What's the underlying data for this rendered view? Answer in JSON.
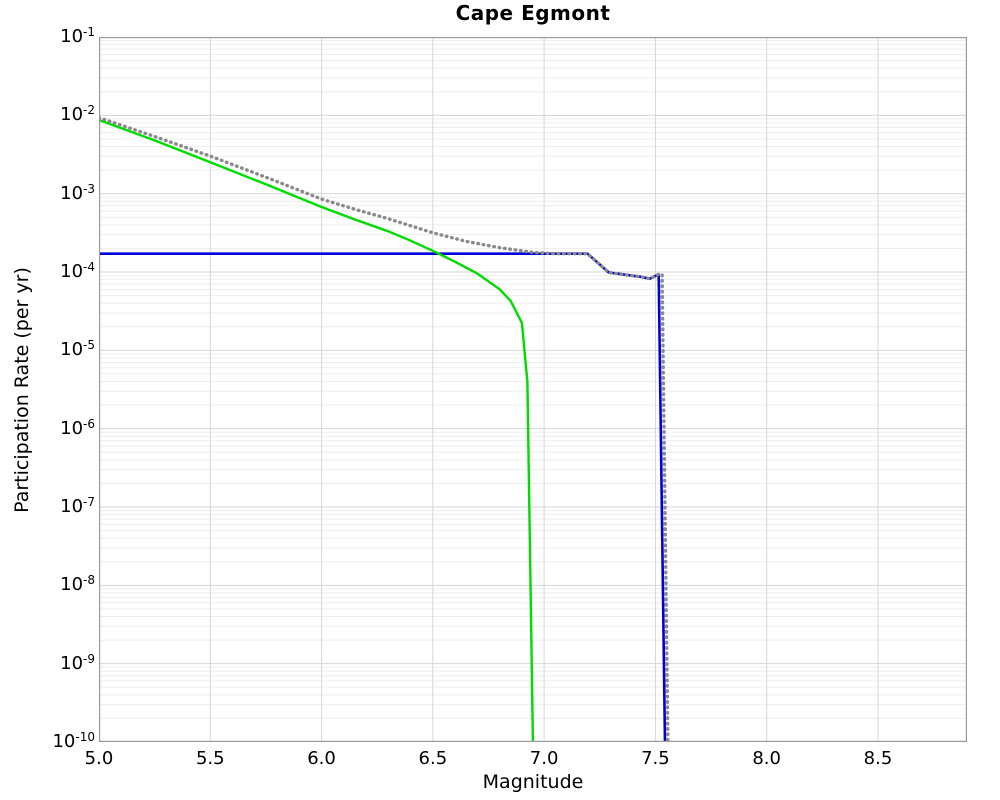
{
  "title": "Cape Egmont",
  "chart_data": {
    "type": "line",
    "title": "Cape Egmont",
    "xlabel": "Magnitude",
    "ylabel": "Participation Rate (per yr)",
    "x_axis": "linear",
    "y_axis": "log10",
    "xlim": [
      5.0,
      8.9
    ],
    "ylim_log10": [
      -10,
      -1
    ],
    "x_ticks": [
      5.0,
      5.5,
      6.0,
      6.5,
      7.0,
      7.5,
      8.0,
      8.5
    ],
    "x_tick_labels": [
      "5.0",
      "5.5",
      "6.0",
      "6.5",
      "7.0",
      "7.5",
      "8.0",
      "8.5"
    ],
    "y_tick_exponents": [
      -1,
      -2,
      -3,
      -4,
      -5,
      -6,
      -7,
      -8,
      -9,
      -10
    ],
    "grid": {
      "major": true,
      "minor_y": true,
      "minor_x": false
    },
    "legend": "none",
    "colors": {
      "grid_major": "#d6d6d6",
      "grid_minor": "#ededed",
      "axis_border": "#9a9a9a",
      "background": "#ffffff",
      "text": "#000000"
    },
    "series": [
      {
        "name": "blue-solid-line",
        "color": "#0000dd",
        "style": "solid",
        "width": 2.6,
        "points_mag_log10rate": [
          [
            5.0,
            -3.766
          ],
          [
            7.195,
            -3.766
          ],
          [
            7.29,
            -4.005
          ],
          [
            7.35,
            -4.03
          ],
          [
            7.43,
            -4.06
          ],
          [
            7.475,
            -4.085
          ],
          [
            7.515,
            -4.03
          ],
          [
            7.545,
            -10.4
          ]
        ]
      },
      {
        "name": "green-solid-line",
        "color": "#00db00",
        "style": "solid",
        "width": 2.4,
        "points_mag_log10rate": [
          [
            5.0,
            -2.06
          ],
          [
            5.25,
            -2.32
          ],
          [
            5.5,
            -2.6
          ],
          [
            5.75,
            -2.88
          ],
          [
            6.0,
            -3.17
          ],
          [
            6.15,
            -3.33
          ],
          [
            6.3,
            -3.48
          ],
          [
            6.4,
            -3.6
          ],
          [
            6.5,
            -3.73
          ],
          [
            6.6,
            -3.87
          ],
          [
            6.7,
            -4.02
          ],
          [
            6.8,
            -4.22
          ],
          [
            6.85,
            -4.37
          ],
          [
            6.9,
            -4.65
          ],
          [
            6.925,
            -5.4
          ],
          [
            6.952,
            -10.4
          ]
        ]
      },
      {
        "name": "gray-dotted-line",
        "color": "#8a8a8a",
        "style": "dotted",
        "width": 3.4,
        "points_mag_log10rate": [
          [
            5.0,
            -2.03
          ],
          [
            5.25,
            -2.27
          ],
          [
            5.5,
            -2.52
          ],
          [
            5.75,
            -2.79
          ],
          [
            6.0,
            -3.07
          ],
          [
            6.15,
            -3.2
          ],
          [
            6.3,
            -3.32
          ],
          [
            6.5,
            -3.5
          ],
          [
            6.65,
            -3.61
          ],
          [
            6.8,
            -3.69
          ],
          [
            6.95,
            -3.75
          ],
          [
            7.05,
            -3.766
          ],
          [
            7.195,
            -3.766
          ],
          [
            7.29,
            -4.005
          ],
          [
            7.35,
            -4.03
          ],
          [
            7.43,
            -4.06
          ],
          [
            7.475,
            -4.085
          ],
          [
            7.515,
            -4.03
          ],
          [
            7.53,
            -4.03
          ],
          [
            7.558,
            -10.4
          ]
        ]
      }
    ]
  }
}
